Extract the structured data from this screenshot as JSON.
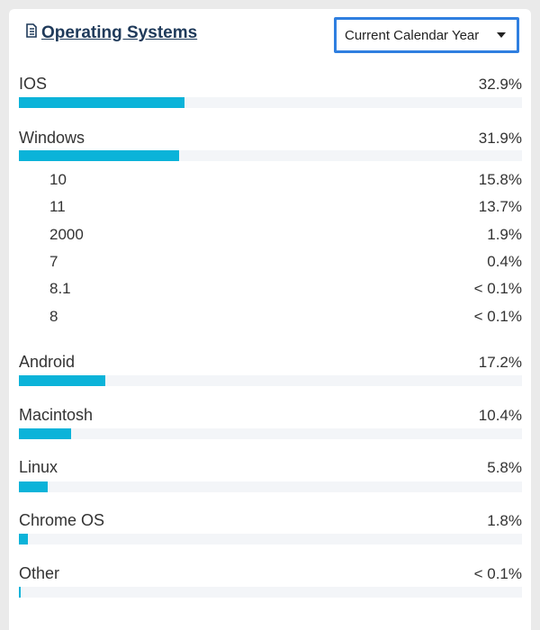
{
  "header": {
    "title": "Operating Systems",
    "period_select": {
      "selected": "Current Calendar Year"
    }
  },
  "colors": {
    "bar_fill": "#0bb3d9",
    "bar_track": "#f3f5f8",
    "select_border": "#2f7fe0",
    "title": "#1f3a5a"
  },
  "os": [
    {
      "name": "IOS",
      "pct_label": "32.9%",
      "value": 32.9
    },
    {
      "name": "Windows",
      "pct_label": "31.9%",
      "value": 31.9,
      "versions": [
        {
          "name": "10",
          "pct_label": "15.8%"
        },
        {
          "name": "11",
          "pct_label": "13.7%"
        },
        {
          "name": "2000",
          "pct_label": "1.9%"
        },
        {
          "name": "7",
          "pct_label": "0.4%"
        },
        {
          "name": "8.1",
          "pct_label": "< 0.1%"
        },
        {
          "name": "8",
          "pct_label": "< 0.1%"
        }
      ]
    },
    {
      "name": "Android",
      "pct_label": "17.2%",
      "value": 17.2
    },
    {
      "name": "Macintosh",
      "pct_label": "10.4%",
      "value": 10.4
    },
    {
      "name": "Linux",
      "pct_label": "5.8%",
      "value": 5.8
    },
    {
      "name": "Chrome OS",
      "pct_label": "1.8%",
      "value": 1.8
    },
    {
      "name": "Other",
      "pct_label": "< 0.1%",
      "value": 0.05
    }
  ]
}
